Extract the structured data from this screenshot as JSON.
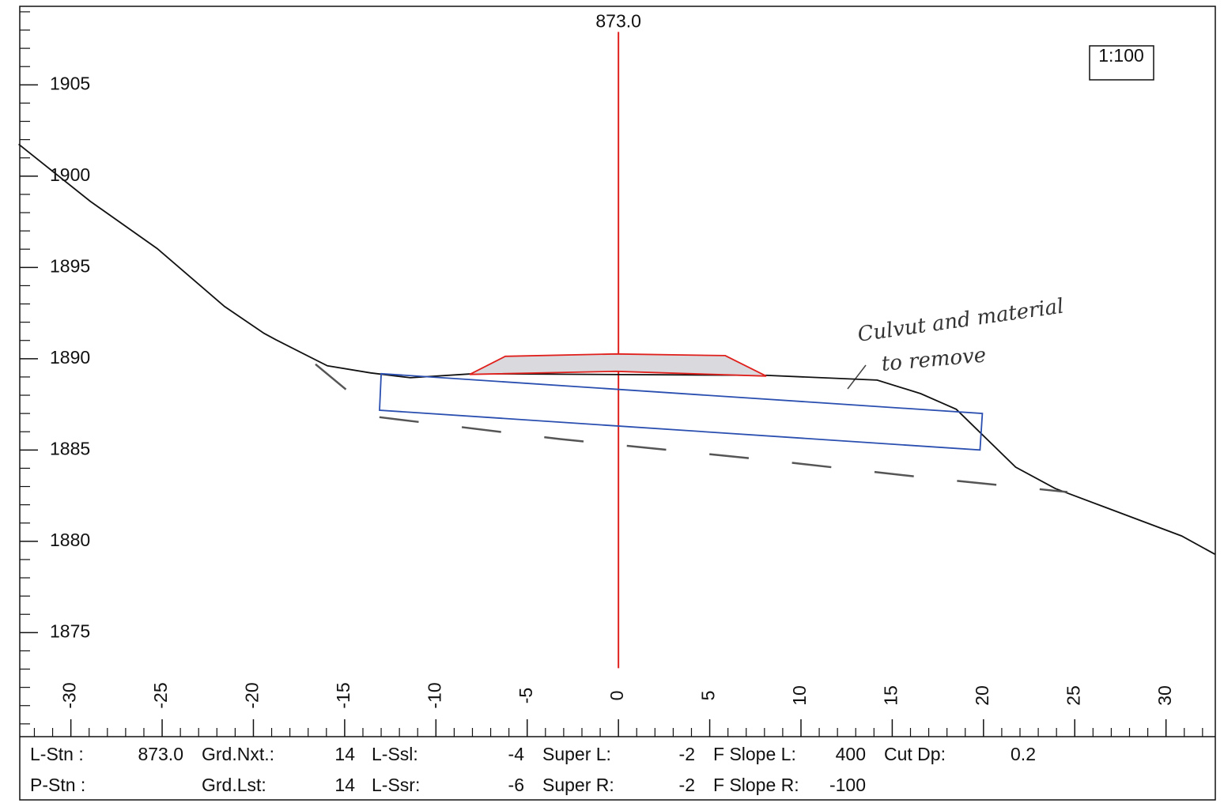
{
  "chart_data": {
    "type": "line",
    "xlim": [
      -32.8,
      32.7
    ],
    "ylim": [
      1869.3,
      1909.3
    ],
    "xticks": [
      -30,
      -25,
      -20,
      -15,
      -10,
      -5,
      0,
      5,
      10,
      15,
      20,
      25,
      30
    ],
    "yticks": [
      1875,
      1880,
      1885,
      1890,
      1895,
      1900,
      1905
    ],
    "xminorticks": [
      -32,
      -31,
      -29,
      -28,
      -27,
      -26,
      -24,
      -23,
      -22,
      -21,
      -19,
      -18,
      -17,
      -16,
      -14,
      -13,
      -12,
      -11,
      -9,
      -8,
      -7,
      -6,
      -4,
      -3,
      -2,
      -1,
      1,
      2,
      3,
      4,
      6,
      7,
      8,
      9,
      11,
      12,
      13,
      14,
      16,
      17,
      18,
      19,
      21,
      22,
      23,
      24,
      26,
      27,
      28,
      29,
      31,
      32
    ],
    "yminorticks": [
      1870,
      1871,
      1872,
      1873,
      1874,
      1876,
      1877,
      1878,
      1879,
      1881,
      1882,
      1883,
      1884,
      1886,
      1887,
      1888,
      1889,
      1891,
      1892,
      1893,
      1894,
      1896,
      1897,
      1898,
      1899,
      1901,
      1902,
      1903,
      1904,
      1906,
      1907,
      1908,
      1909
    ],
    "scale_label": "1:100",
    "station": {
      "label": "873.0",
      "x": 0,
      "y": [
        1873.05,
        1907.9
      ],
      "color": "#e0201c"
    },
    "series": [
      {
        "color": "#111111",
        "x": [
          -32.86,
          -28.95,
          -25.27,
          -21.58,
          -19.42,
          -18.77,
          -15.95,
          -13.57,
          -11.4,
          -7.93,
          8.11,
          14.17,
          16.56,
          18.51,
          21.76,
          23.93,
          30.86,
          32.68
        ],
        "values": [
          1901.75,
          1898.63,
          1896.03,
          1892.86,
          1891.39,
          1891.04,
          1889.61,
          1889.22,
          1888.96,
          1889.18,
          1889.09,
          1888.83,
          1888.09,
          1887.23,
          1884.06,
          1882.89,
          1880.29,
          1879.29
        ]
      },
      {
        "color": "#e0201c",
        "fill": "#d9d9de",
        "closed": true,
        "x": [
          -8.15,
          -6.2,
          -0.13,
          5.85,
          8.1,
          -0.13
        ],
        "values": [
          1889.14,
          1890.13,
          1890.26,
          1890.17,
          1889.05,
          1889.31
        ]
      },
      {
        "color": "#2a4fb0",
        "closed": true,
        "x": [
          -13.0,
          19.94,
          19.81,
          -13.09
        ],
        "values": [
          1889.18,
          1887.0,
          1885.0,
          1887.18
        ]
      },
      {
        "color": "#555555",
        "dashed": true,
        "x": [
          -16.6,
          -13.1,
          -3.2,
          7.7,
          16.7,
          24.6
        ],
        "values": [
          1889.7,
          1886.8,
          1885.6,
          1884.5,
          1883.5,
          1882.7
        ]
      }
    ],
    "annotation": {
      "lines": [
        "Culvut and material",
        "to remove"
      ]
    }
  },
  "table": {
    "rows": [
      [
        [
          "L-Stn :",
          "873.0"
        ],
        [
          "Grd.Nxt.:",
          "14"
        ],
        [
          "L-Ssl:",
          "-4"
        ],
        [
          "Super L:",
          "-2"
        ],
        [
          "F Slope L:",
          "400"
        ],
        [
          "Cut Dp:",
          "0.2"
        ]
      ],
      [
        [
          "P-Stn :"
        ],
        [
          "Grd.Lst:",
          "14"
        ],
        [
          "L-Ssr:",
          "-6"
        ],
        [
          "Super R:",
          "-2"
        ],
        [
          "F Slope R:",
          "-100"
        ]
      ]
    ]
  }
}
